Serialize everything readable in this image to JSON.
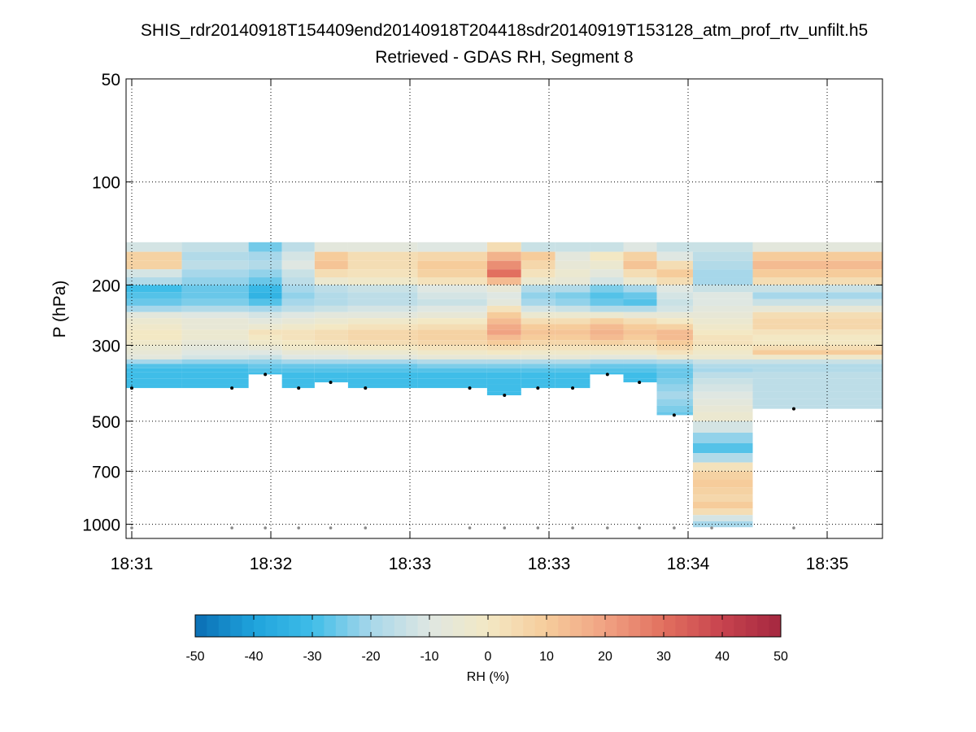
{
  "chart_data": {
    "type": "heatmap",
    "title": "SHIS_rdr20140918T154409end20140918T204418sdr20140919T153128_atm_prof_rtv_unfilt.h5",
    "subtitle": "Retrieved - GDAS RH, Segment 8",
    "xlabel": "",
    "ylabel": "P (hPa)",
    "y_scale": "log",
    "y_reversed": true,
    "ylim": [
      50,
      1100
    ],
    "y_ticks": [
      50,
      100,
      200,
      300,
      500,
      700,
      1000
    ],
    "x_tick_labels": [
      "18:31",
      "18:32",
      "18:33",
      "18:33",
      "18:34",
      "18:35"
    ],
    "grid": true,
    "grid_style": "dotted",
    "colorbar": {
      "label": "RH (%)",
      "range": [
        -50,
        50
      ],
      "ticks": [
        -50,
        -40,
        -30,
        -20,
        -10,
        0,
        10,
        20,
        30,
        40,
        50
      ],
      "colormap": "blue-white-red diverging",
      "colors": [
        "#0a6eb4",
        "#1fa3dc",
        "#3fbde8",
        "#a7d7ea",
        "#dfe7e2",
        "#f3e8c4",
        "#f6cc9b",
        "#f0a282",
        "#e2705f",
        "#c7434e",
        "#a4273f"
      ]
    },
    "pressure_levels": [
      150,
      160,
      170,
      180,
      190,
      200,
      210,
      220,
      230,
      240,
      250,
      260,
      270,
      280,
      290,
      300,
      310,
      320,
      330,
      340,
      350,
      360,
      375,
      390,
      410,
      430,
      450,
      470,
      500,
      540,
      580,
      620,
      660,
      700,
      740,
      780,
      820,
      860,
      900,
      940,
      980,
      1020
    ],
    "profiles": [
      {
        "x": 0.0,
        "surface_p": 1025,
        "top_p": 400,
        "rh_diff": [
          -12,
          8,
          8,
          -12,
          -18,
          -30,
          -28,
          -26,
          -20,
          -8,
          -4,
          -2,
          0,
          0,
          -2,
          -5,
          -6,
          -8,
          -20,
          -28,
          -30,
          -30,
          -30,
          -30
        ]
      },
      {
        "x": 0.72,
        "surface_p": 1025,
        "top_p": 400,
        "rh_diff": [
          -15,
          -18,
          -16,
          -20,
          -22,
          -26,
          -26,
          -24,
          -18,
          -10,
          -6,
          -6,
          -4,
          -4,
          -6,
          -8,
          -10,
          -12,
          -22,
          -28,
          -30,
          -30,
          -30,
          -30
        ]
      },
      {
        "x": 0.96,
        "surface_p": 1025,
        "top_p": 365,
        "rh_diff": [
          -25,
          -20,
          -18,
          -22,
          -26,
          -32,
          -34,
          -28,
          -20,
          -12,
          -8,
          -4,
          2,
          0,
          -2,
          -6,
          -10,
          -14,
          -22,
          -26,
          -28,
          -30
        ]
      },
      {
        "x": 1.2,
        "surface_p": 1025,
        "top_p": 400,
        "rh_diff": [
          -16,
          -12,
          -10,
          -14,
          -16,
          -20,
          -22,
          -20,
          -16,
          -10,
          -6,
          -2,
          2,
          2,
          0,
          -2,
          -6,
          -10,
          -20,
          -26,
          -28,
          -30,
          -30,
          -30
        ]
      },
      {
        "x": 1.43,
        "surface_p": 1025,
        "top_p": 385,
        "rh_diff": [
          -8,
          10,
          12,
          4,
          -4,
          -16,
          -18,
          -18,
          -14,
          -8,
          -4,
          0,
          4,
          4,
          2,
          -2,
          -6,
          -10,
          -20,
          -26,
          -28,
          -30,
          -30
        ]
      },
      {
        "x": 1.68,
        "surface_p": 1025,
        "top_p": 400,
        "rh_diff": [
          -8,
          4,
          4,
          2,
          -2,
          -14,
          -16,
          -16,
          -12,
          -8,
          -2,
          2,
          6,
          6,
          4,
          0,
          -4,
          -8,
          -20,
          -26,
          -28,
          -30,
          -30,
          -30
        ]
      },
      {
        "x": 2.43,
        "surface_p": 1025,
        "top_p": 400,
        "rh_diff": [
          -10,
          6,
          10,
          8,
          2,
          -10,
          -12,
          -14,
          -10,
          -6,
          0,
          4,
          8,
          8,
          6,
          2,
          -2,
          -6,
          -18,
          -24,
          -28,
          -30,
          -30,
          -30
        ]
      },
      {
        "x": 2.68,
        "surface_p": 1025,
        "top_p": 420,
        "rh_diff": [
          4,
          16,
          24,
          30,
          14,
          -6,
          -10,
          -8,
          2,
          10,
          14,
          18,
          20,
          14,
          10,
          4,
          0,
          -6,
          -18,
          -24,
          -28,
          -30,
          -30,
          -30,
          -30
        ]
      },
      {
        "x": 2.92,
        "surface_p": 1025,
        "top_p": 400,
        "rh_diff": [
          -14,
          10,
          6,
          2,
          -4,
          -18,
          -22,
          -20,
          -12,
          -4,
          4,
          10,
          12,
          10,
          6,
          2,
          -2,
          -6,
          -18,
          -24,
          -28,
          -30,
          -30,
          -30
        ]
      },
      {
        "x": 3.17,
        "surface_p": 1025,
        "top_p": 400,
        "rh_diff": [
          -14,
          -8,
          -6,
          -4,
          -6,
          -18,
          -24,
          -22,
          -14,
          -4,
          4,
          10,
          12,
          10,
          6,
          2,
          -2,
          -6,
          -18,
          -24,
          -28,
          -30,
          -30,
          -30
        ]
      },
      {
        "x": 3.42,
        "surface_p": 1025,
        "top_p": 365,
        "rh_diff": [
          -14,
          0,
          -4,
          -8,
          -12,
          -24,
          -28,
          -26,
          -18,
          -4,
          8,
          14,
          16,
          14,
          8,
          2,
          -2,
          -8,
          -20,
          -26,
          -28,
          -30
        ]
      },
      {
        "x": 3.65,
        "surface_p": 1025,
        "top_p": 385,
        "rh_diff": [
          -10,
          8,
          12,
          4,
          -4,
          -20,
          -26,
          -28,
          -18,
          -6,
          4,
          10,
          12,
          10,
          6,
          2,
          -2,
          -8,
          -20,
          -26,
          -28,
          -30,
          -30
        ]
      },
      {
        "x": 3.9,
        "surface_p": 1025,
        "top_p": 480,
        "rh_diff": [
          -14,
          -10,
          4,
          10,
          4,
          -10,
          -12,
          -14,
          -12,
          -6,
          0,
          8,
          14,
          14,
          10,
          6,
          2,
          -4,
          -18,
          -24,
          -26,
          -26,
          -24,
          -22,
          -20,
          -22,
          -24,
          -26
        ]
      },
      {
        "x": 4.17,
        "surface_p": 1025,
        "top_p": 1025,
        "rh_diff": [
          -14,
          -16,
          -18,
          -20,
          -20,
          -14,
          -10,
          -10,
          -8,
          -6,
          -4,
          -2,
          0,
          2,
          2,
          0,
          -2,
          -4,
          -14,
          -18,
          -20,
          -16,
          -14,
          -12,
          -10,
          -8,
          -6,
          -4,
          -12,
          -22,
          -28,
          -18,
          2,
          8,
          10,
          8,
          6,
          10,
          4,
          -12,
          -20,
          0
        ]
      },
      {
        "x": 4.76,
        "surface_p": 1025,
        "top_p": 460,
        "rh_diff": [
          -8,
          10,
          14,
          10,
          4,
          -14,
          -20,
          -14,
          -6,
          4,
          6,
          6,
          2,
          0,
          0,
          4,
          10,
          -2,
          -14,
          -18,
          -18,
          -16,
          -16,
          -16,
          -16,
          -16,
          -16
        ]
      }
    ],
    "surface_markers": {
      "p": 1025
    }
  }
}
